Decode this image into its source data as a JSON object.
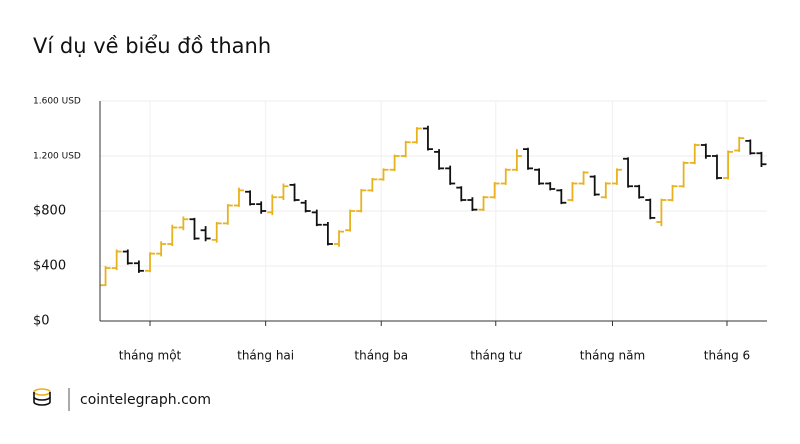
{
  "chart_data": {
    "type": "ohlc",
    "title": "Ví dụ về biểu đồ thanh",
    "x": [
      0,
      1,
      2,
      3,
      4,
      5,
      6,
      7,
      8,
      9,
      10,
      11,
      12,
      13,
      14,
      15,
      16,
      17,
      18,
      19,
      20,
      21,
      22,
      23,
      24,
      25,
      26,
      27,
      28,
      29,
      30,
      31,
      32,
      33,
      34,
      35,
      36,
      37,
      38,
      39,
      40,
      41,
      42,
      43,
      44,
      45,
      46,
      47,
      48,
      49,
      50,
      51,
      52,
      53,
      54,
      55,
      56,
      57,
      58,
      59
    ],
    "open": [
      260,
      385,
      505,
      420,
      365,
      490,
      560,
      680,
      740,
      660,
      590,
      710,
      840,
      940,
      850,
      790,
      900,
      990,
      860,
      790,
      700,
      560,
      660,
      800,
      950,
      1030,
      1100,
      1200,
      1300,
      1400,
      1230,
      1110,
      970,
      880,
      810,
      900,
      1000,
      1100,
      1250,
      1100,
      1000,
      950,
      880,
      1000,
      1050,
      900,
      1000,
      1180,
      980,
      880,
      720,
      880,
      980,
      1150,
      1280,
      1200,
      1040,
      1240,
      1310,
      1220
    ],
    "high": [
      400,
      520,
      520,
      440,
      500,
      580,
      700,
      760,
      750,
      690,
      720,
      850,
      970,
      950,
      870,
      920,
      1000,
      1000,
      880,
      810,
      720,
      660,
      810,
      960,
      1040,
      1110,
      1210,
      1310,
      1410,
      1420,
      1250,
      1130,
      980,
      900,
      910,
      1010,
      1110,
      1250,
      1260,
      1110,
      1010,
      960,
      1010,
      1090,
      1060,
      1010,
      1110,
      1190,
      990,
      890,
      890,
      990,
      1160,
      1290,
      1290,
      1210,
      1240,
      1340,
      1320,
      1230
    ],
    "low": [
      255,
      370,
      410,
      350,
      355,
      470,
      545,
      660,
      590,
      580,
      570,
      700,
      830,
      840,
      780,
      770,
      880,
      870,
      790,
      690,
      550,
      540,
      650,
      790,
      940,
      1020,
      1090,
      1190,
      1290,
      1240,
      1100,
      990,
      870,
      800,
      800,
      890,
      990,
      1090,
      1100,
      990,
      950,
      850,
      870,
      990,
      910,
      890,
      990,
      970,
      890,
      740,
      690,
      870,
      970,
      1140,
      1180,
      1030,
      1030,
      1230,
      1210,
      1120
    ],
    "close": [
      385,
      505,
      420,
      365,
      490,
      560,
      680,
      740,
      600,
      600,
      710,
      840,
      950,
      850,
      800,
      900,
      980,
      880,
      800,
      700,
      560,
      650,
      800,
      950,
      1030,
      1100,
      1200,
      1300,
      1400,
      1250,
      1110,
      1000,
      880,
      810,
      900,
      1000,
      1100,
      1200,
      1110,
      1000,
      960,
      860,
      1000,
      1080,
      920,
      1000,
      1100,
      980,
      900,
      750,
      880,
      980,
      1150,
      1280,
      1200,
      1040,
      1230,
      1330,
      1220,
      1140
    ],
    "up_color": "#e8b21f",
    "down_color": "#111111",
    "xlim": [
      -0.5,
      59.5
    ],
    "xticks": [
      {
        "value": 4.0,
        "label": "tháng một"
      },
      {
        "value": 14.4,
        "label": "tháng hai"
      },
      {
        "value": 24.8,
        "label": "tháng ba"
      },
      {
        "value": 35.1,
        "label": "tháng tư"
      },
      {
        "value": 45.6,
        "label": "tháng năm"
      },
      {
        "value": 55.9,
        "label": "tháng 6"
      }
    ],
    "ylim": [
      0,
      1600
    ],
    "yticks": [
      {
        "value": 0,
        "label": "$0"
      },
      {
        "value": 400,
        "label": "$400"
      },
      {
        "value": 800,
        "label": "$800"
      },
      {
        "value": 1200,
        "label": "1.200 USD"
      },
      {
        "value": 1600,
        "label": "1.600 USD"
      }
    ],
    "grid": true
  },
  "footer": {
    "brand": "cointelegraph.com"
  }
}
